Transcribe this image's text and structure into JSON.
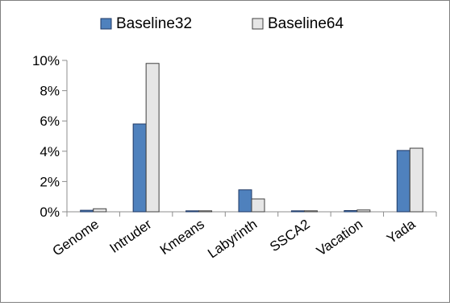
{
  "chart_data": {
    "type": "bar",
    "title": "",
    "xlabel": "",
    "ylabel": "",
    "categories": [
      "Genome",
      "Intruder",
      "Kmeans",
      "Labyrinth",
      "SSCA2",
      "Vacation",
      "Yada"
    ],
    "series": [
      {
        "name": "Baseline32",
        "values": [
          0.1,
          5.8,
          0.0,
          1.45,
          0.0,
          0.08,
          4.05
        ],
        "fill": "#4f81bd",
        "stroke": "#1f3864"
      },
      {
        "name": "Baseline64",
        "values": [
          0.2,
          9.8,
          0.05,
          0.85,
          0.05,
          0.12,
          4.2
        ],
        "fill": "#e6e6e6",
        "stroke": "#404040"
      }
    ],
    "ylim": [
      0,
      10
    ],
    "yticks": [
      0,
      2,
      4,
      6,
      8,
      10
    ],
    "ytick_format": "percent",
    "grid": false,
    "legend_position": "top-center"
  }
}
